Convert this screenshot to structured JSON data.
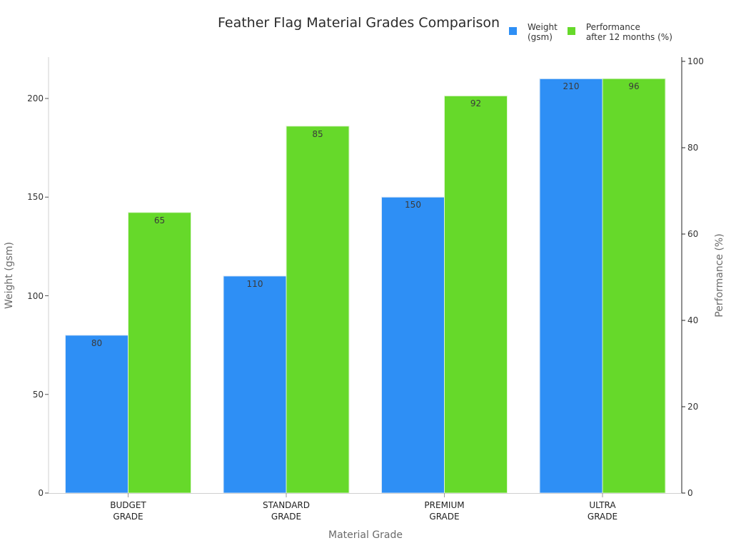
{
  "title": "Feather Flag Material Grades Comparison",
  "legend": [
    {
      "label": "Weight\n(gsm)",
      "color": "#2e8ff5"
    },
    {
      "label": "Performance\nafter 12 months (%)",
      "color": "#66d92a"
    }
  ],
  "axes": {
    "x_title": "Material Grade",
    "y_left_title": "Weight (gsm)",
    "y_right_title": "Performance (%)",
    "y_left_ticks": [
      "0",
      "50",
      "100",
      "150",
      "200"
    ],
    "y_right_ticks": [
      "0",
      "20",
      "40",
      "60",
      "80",
      "100"
    ]
  },
  "categories": [
    "BUDGET\nGRADE",
    "STANDARD\nGRADE",
    "PREMIUM\nGRADE",
    "ULTRA\nGRADE"
  ],
  "bar_labels": {
    "weight": [
      "80",
      "110",
      "150",
      "210"
    ],
    "performance": [
      "65",
      "85",
      "92",
      "96"
    ]
  },
  "chart_data": {
    "type": "bar",
    "title": "Feather Flag Material Grades Comparison",
    "xlabel": "Material Grade",
    "categories": [
      "BUDGET GRADE",
      "STANDARD GRADE",
      "PREMIUM GRADE",
      "ULTRA GRADE"
    ],
    "series": [
      {
        "name": "Weight (gsm)",
        "axis": "left",
        "color": "#2e8ff5",
        "values": [
          80,
          110,
          150,
          210
        ]
      },
      {
        "name": "Performance after 12 months (%)",
        "axis": "right",
        "color": "#66d92a",
        "values": [
          65,
          85,
          92,
          96
        ]
      }
    ],
    "ylabel": "Weight (gsm)",
    "ylabel_right": "Performance (%)",
    "ylim": [
      0,
      220
    ],
    "ylim_right": [
      0,
      101
    ],
    "yticks": [
      0,
      50,
      100,
      150,
      200
    ],
    "yticks_right": [
      0,
      20,
      40,
      60,
      80,
      100
    ],
    "grid": false,
    "legend_position": "top-right",
    "data_labels": true
  }
}
